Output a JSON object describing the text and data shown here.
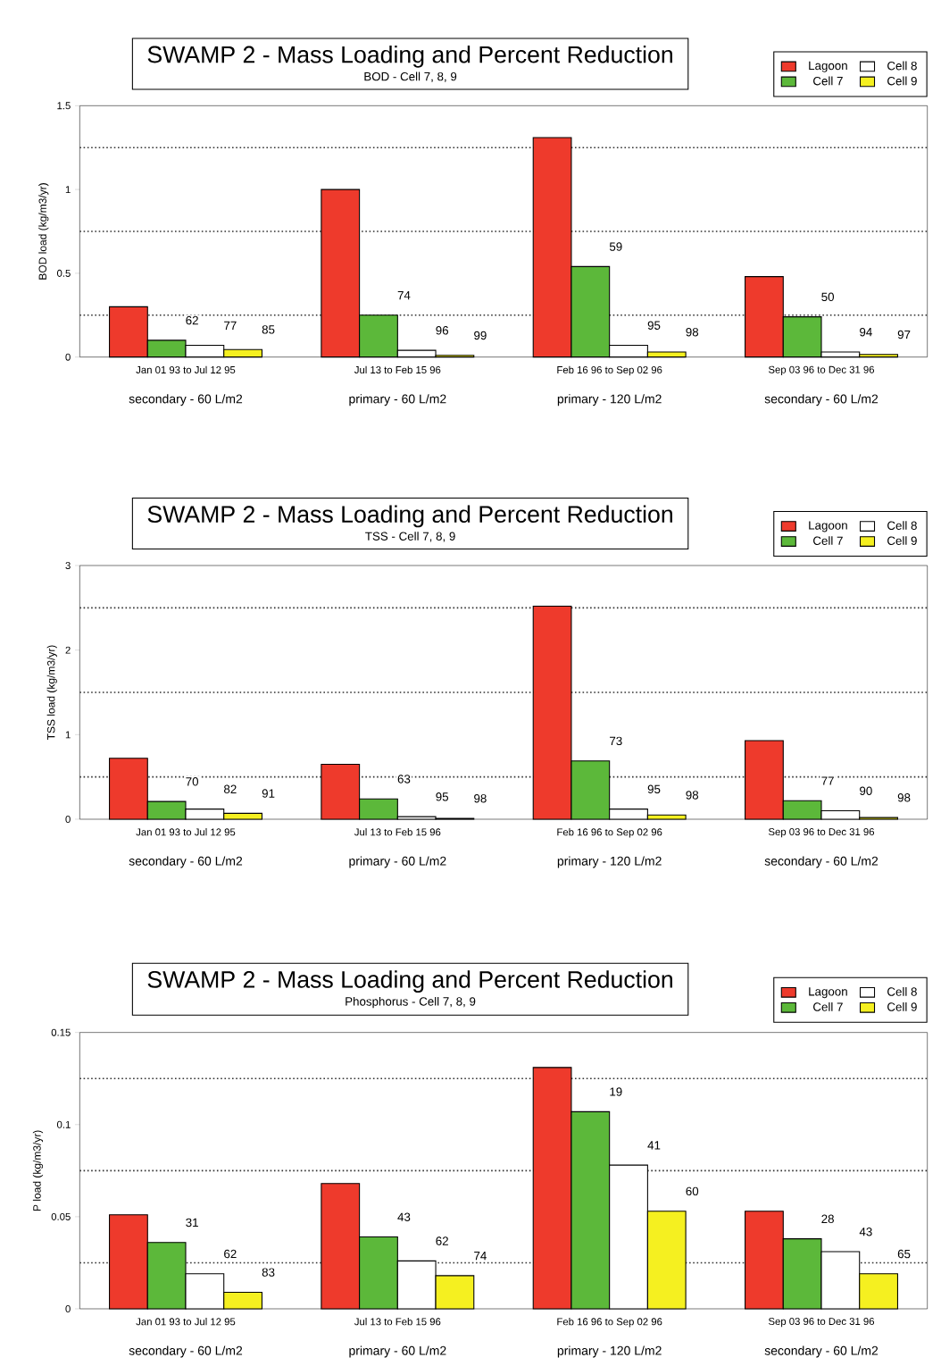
{
  "chart_data": [
    {
      "type": "bar",
      "title": "SWAMP 2 - Mass Loading and Percent Reduction",
      "subtitle": "BOD - Cell 7, 8, 9",
      "ylabel": "BOD load (kg/m3/yr)",
      "categories": [
        "Jan 01 93 to Jul 12 95",
        "Jul 13  to Feb 15 96",
        "Feb 16 96 to Sep 02 96",
        "Sep 03 96 to Dec 31 96"
      ],
      "annotations": [
        "secondary - 60 L/m2",
        "primary - 60 L/m2",
        "primary  - 120 L/m2",
        "secondary - 60 L/m2",
        "62",
        "77",
        "85",
        "74",
        "96",
        "99",
        "59",
        "95",
        "98",
        "50",
        "94",
        "97"
      ],
      "series": [
        {
          "name": "Lagoon",
          "color": "#ee3a2c",
          "values": [
            0.3,
            1.0,
            1.31,
            0.48
          ]
        },
        {
          "name": "Cell 7",
          "color": "#5cb83a",
          "values": [
            0.1,
            0.25,
            0.54,
            0.24
          ]
        },
        {
          "name": "Cell 8",
          "color": "#ffffff",
          "values": [
            0.07,
            0.04,
            0.07,
            0.03
          ]
        },
        {
          "name": "Cell 9",
          "color": "#f5f020",
          "values": [
            0.045,
            0.01,
            0.03,
            0.015
          ]
        }
      ],
      "ylim": [
        0,
        1.5
      ],
      "yticks": [
        0,
        0.5,
        1,
        1.5
      ],
      "ref_lines": [
        {
          "axis": "y",
          "value": 0.25,
          "color": "#333333",
          "line_style": "dotted"
        },
        {
          "axis": "y",
          "value": 0.75,
          "color": "#333333",
          "line_style": "dotted"
        },
        {
          "axis": "y",
          "value": 1.25,
          "color": "#333333",
          "line_style": "dotted"
        }
      ],
      "legend": "top right"
    },
    {
      "type": "bar",
      "title": "SWAMP 2 - Mass Loading and Percent Reduction",
      "subtitle": "TSS - Cell 7, 8, 9",
      "ylabel": "TSS load (kg/m3/yr)",
      "categories": [
        "Jan 01 93 to Jul 12 95",
        "Jul 13  to Feb 15 96",
        "Feb 16 96 to Sep 02 96",
        "Sep 03 96 to Dec 31 96"
      ],
      "annotations": [
        "secondary - 60 L/m2",
        "primary - 60 L/m2",
        "primary  - 120 L/m2",
        "secondary - 60 L/m2",
        "70",
        "82",
        "91",
        "63",
        "95",
        "98",
        "73",
        "95",
        "98",
        "77",
        "90",
        "98"
      ],
      "series": [
        {
          "name": "Lagoon",
          "color": "#ee3a2c",
          "values": [
            0.72,
            0.65,
            2.52,
            0.93
          ]
        },
        {
          "name": "Cell 7",
          "color": "#5cb83a",
          "values": [
            0.21,
            0.24,
            0.69,
            0.22
          ]
        },
        {
          "name": "Cell 8",
          "color": "#ffffff",
          "values": [
            0.12,
            0.03,
            0.12,
            0.1
          ]
        },
        {
          "name": "Cell 9",
          "color": "#f5f020",
          "values": [
            0.07,
            0.01,
            0.05,
            0.02
          ]
        }
      ],
      "ylim": [
        0,
        3
      ],
      "yticks": [
        0,
        1,
        2,
        3
      ],
      "ref_lines": [
        {
          "axis": "y",
          "value": 0.5,
          "color": "#333333",
          "line_style": "dotted"
        },
        {
          "axis": "y",
          "value": 1.5,
          "color": "#333333",
          "line_style": "dotted"
        },
        {
          "axis": "y",
          "value": 2.5,
          "color": "#333333",
          "line_style": "dotted"
        }
      ],
      "legend": "top right"
    },
    {
      "type": "bar",
      "title": "SWAMP 2 - Mass Loading and Percent Reduction",
      "subtitle": "Phosphorus - Cell 7, 8, 9",
      "ylabel": "P load (kg/m3/yr)",
      "categories": [
        "Jan 01 93 to Jul 12 95",
        "Jul 13  to Feb 15 96",
        "Feb 16 96 to Sep 02 96",
        "Sep 03 96 to Dec 31 96"
      ],
      "annotations": [
        "secondary - 60 L/m2",
        "primary - 60 L/m2",
        "primary  - 120 L/m2",
        "secondary - 60 L/m2",
        "31",
        "62",
        "83",
        "43",
        "62",
        "74",
        "19",
        "41",
        "60",
        "28",
        "43",
        "65"
      ],
      "series": [
        {
          "name": "Lagoon",
          "color": "#ee3a2c",
          "values": [
            0.051,
            0.068,
            0.131,
            0.053
          ]
        },
        {
          "name": "Cell 7",
          "color": "#5cb83a",
          "values": [
            0.036,
            0.039,
            0.107,
            0.038
          ]
        },
        {
          "name": "Cell 8",
          "color": "#ffffff",
          "values": [
            0.019,
            0.026,
            0.078,
            0.031
          ]
        },
        {
          "name": "Cell 9",
          "color": "#f5f020",
          "values": [
            0.009,
            0.018,
            0.053,
            0.019
          ]
        }
      ],
      "ylim": [
        0,
        0.15
      ],
      "yticks": [
        0,
        0.05,
        0.1,
        0.15
      ],
      "ref_lines": [
        {
          "axis": "y",
          "value": 0.025,
          "color": "#333333",
          "line_style": "dotted"
        },
        {
          "axis": "y",
          "value": 0.075,
          "color": "#333333",
          "line_style": "dotted"
        },
        {
          "axis": "y",
          "value": 0.125,
          "color": "#333333",
          "line_style": "dotted"
        }
      ],
      "legend": "top right"
    }
  ]
}
